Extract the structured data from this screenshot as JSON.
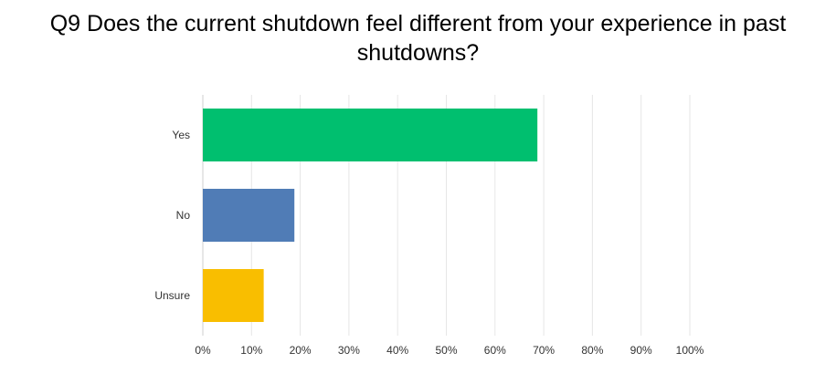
{
  "chart_data": {
    "type": "bar",
    "orientation": "horizontal",
    "title": "Q9 Does the current shutdown feel different from your experience in past shutdowns?",
    "categories": [
      "Yes",
      "No",
      "Unsure"
    ],
    "values": [
      68.7,
      18.8,
      12.5
    ],
    "colors": [
      "#00bf6f",
      "#507cb6",
      "#f9be00"
    ],
    "xlim": [
      0,
      100
    ],
    "x_ticks": [
      "0%",
      "10%",
      "20%",
      "30%",
      "40%",
      "50%",
      "60%",
      "70%",
      "80%",
      "90%",
      "100%"
    ],
    "grid": true,
    "legend": "none"
  }
}
